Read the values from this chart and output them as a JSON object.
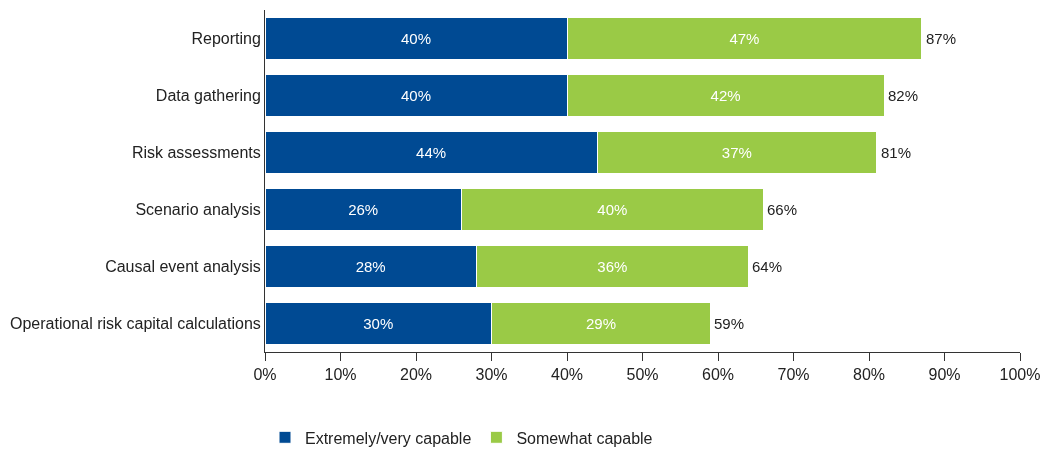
{
  "chart_data": {
    "type": "bar",
    "orientation": "horizontal",
    "stacked": true,
    "categories": [
      "Reporting",
      "Data gathering",
      "Risk assessments",
      "Scenario analysis",
      "Causal event analysis",
      "Operational risk capital calculations"
    ],
    "series": [
      {
        "name": "Extremely/very capable",
        "color": "#004a93",
        "values": [
          40,
          40,
          44,
          26,
          28,
          30
        ],
        "value_labels": [
          "40%",
          "40%",
          "44%",
          "26%",
          "28%",
          "30%"
        ]
      },
      {
        "name": "Somewhat capable",
        "color": "#9aca46",
        "values": [
          47,
          42,
          37,
          40,
          36,
          29
        ],
        "value_labels": [
          "47%",
          "42%",
          "37%",
          "40%",
          "36%",
          "29%"
        ]
      }
    ],
    "totals": [
      "87%",
      "82%",
      "81%",
      "66%",
      "64%",
      "59%"
    ],
    "xlim": [
      0,
      100
    ],
    "xticks": [
      {
        "value": 0,
        "label": "0%"
      },
      {
        "value": 10,
        "label": "10%"
      },
      {
        "value": 20,
        "label": "20%"
      },
      {
        "value": 30,
        "label": "30%"
      },
      {
        "value": 40,
        "label": "40%"
      },
      {
        "value": 50,
        "label": "50%"
      },
      {
        "value": 60,
        "label": "60%"
      },
      {
        "value": 70,
        "label": "70%"
      },
      {
        "value": 80,
        "label": "80%"
      },
      {
        "value": 90,
        "label": "90%"
      },
      {
        "value": 100,
        "label": "100%"
      }
    ],
    "legend": "bottom"
  }
}
